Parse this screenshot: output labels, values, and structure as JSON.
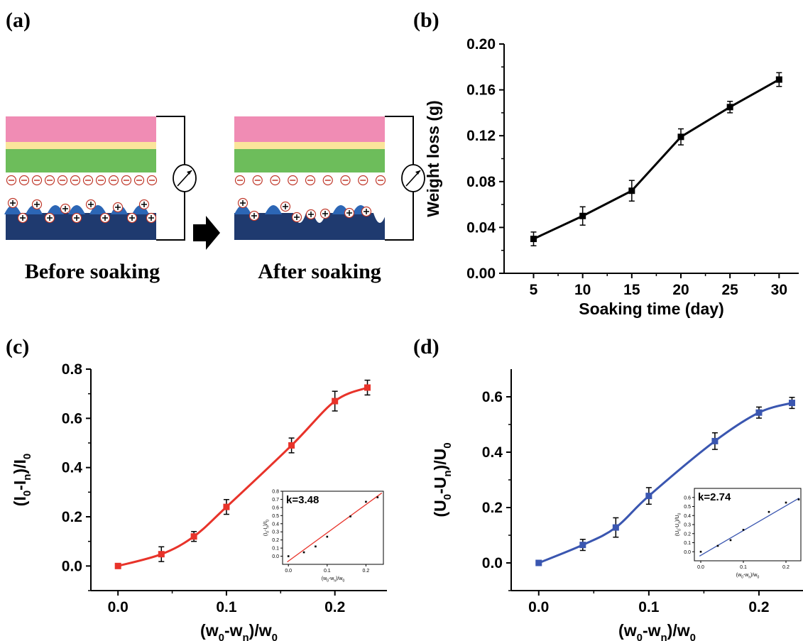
{
  "panels": {
    "a": "(a)",
    "b": "(b)",
    "c": "(c)",
    "d": "(d)"
  },
  "schematic": {
    "before_caption": "Before soaking",
    "after_caption": "After soaking",
    "colors": {
      "pink_layer": "#f08cb4",
      "yellow_layer": "#fbe59b",
      "green_layer": "#6dbd5b",
      "base": "#1f3a6f",
      "bumps": "#2c66b5"
    }
  },
  "chart_data": [
    {
      "id": "b",
      "type": "line",
      "title": "",
      "xlabel": "Soaking time (day)",
      "ylabel": "Weight loss (g)",
      "xlim": [
        2,
        32
      ],
      "ylim": [
        0,
        0.2
      ],
      "xticks": [
        "5",
        "10",
        "15",
        "20",
        "25",
        "30"
      ],
      "yticks": [
        "0.00",
        "0.04",
        "0.08",
        "0.12",
        "0.16",
        "0.20"
      ],
      "color": "#000000",
      "x": [
        5,
        10,
        15,
        20,
        25,
        30
      ],
      "y": [
        0.03,
        0.05,
        0.072,
        0.119,
        0.145,
        0.169
      ],
      "err": [
        0.006,
        0.008,
        0.009,
        0.007,
        0.005,
        0.006
      ]
    },
    {
      "id": "c",
      "type": "line",
      "title": "",
      "xlabel": "(w0-wn)/w0",
      "ylabel": "(I0-In)/I0",
      "xlim": [
        -0.025,
        0.248
      ],
      "ylim": [
        -0.1,
        0.8
      ],
      "xticks": [
        "0.0",
        "0.1",
        "0.2"
      ],
      "yticks": [
        "0.0",
        "0.2",
        "0.4",
        "0.6",
        "0.8"
      ],
      "color": "#e8332a",
      "x": [
        0,
        0.04,
        0.07,
        0.1,
        0.16,
        0.2,
        0.23
      ],
      "y": [
        0,
        0.048,
        0.12,
        0.24,
        0.49,
        0.67,
        0.725
      ],
      "err": [
        0.005,
        0.03,
        0.02,
        0.03,
        0.03,
        0.04,
        0.03
      ],
      "inset": {
        "type": "scatter",
        "annotation": "k=3.48",
        "xlabel": "(w0-wn)/w0",
        "ylabel": "(I0-In)/I0",
        "xlim": [
          -0.015,
          0.245
        ],
        "ylim": [
          -0.1,
          0.8
        ],
        "xticks": [
          "0.0",
          "0.1",
          "0.2"
        ],
        "yticks": [
          "0.0",
          "0.1",
          "0.2",
          "0.3",
          "0.4",
          "0.5",
          "0.6",
          "0.7",
          "0.8"
        ],
        "slope": 3.48,
        "intercept": -0.06,
        "fit_color": "#e8332a",
        "x": [
          0,
          0.04,
          0.07,
          0.1,
          0.16,
          0.2,
          0.23
        ],
        "y": [
          0,
          0.048,
          0.12,
          0.24,
          0.49,
          0.67,
          0.725
        ]
      }
    },
    {
      "id": "d",
      "type": "line",
      "title": "",
      "xlabel": "(w0-wn)/w0",
      "ylabel": "(U0-Un)/U0",
      "xlim": [
        -0.025,
        0.24
      ],
      "ylim": [
        -0.1,
        0.7
      ],
      "xticks": [
        "0.0",
        "0.1",
        "0.2"
      ],
      "yticks": [
        "0.0",
        "0.2",
        "0.4",
        "0.6"
      ],
      "color": "#3a56b0",
      "x": [
        0,
        0.04,
        0.07,
        0.1,
        0.16,
        0.2,
        0.23
      ],
      "y": [
        0,
        0.065,
        0.128,
        0.242,
        0.44,
        0.543,
        0.578
      ],
      "err": [
        0.005,
        0.02,
        0.035,
        0.03,
        0.03,
        0.02,
        0.02
      ],
      "inset": {
        "type": "scatter",
        "annotation": "k=2.74",
        "xlabel": "(w0-wn)/w0",
        "ylabel": "(U0-Un)/U0",
        "xlim": [
          -0.015,
          0.235
        ],
        "ylim": [
          -0.1,
          0.7
        ],
        "xticks": [
          "0.0",
          "0.1",
          "0.2"
        ],
        "yticks": [
          "0.0",
          "0.1",
          "0.2",
          "0.3",
          "0.4",
          "0.5",
          "0.6"
        ],
        "slope": 2.74,
        "intercept": -0.04,
        "fit_color": "#3a56b0",
        "x": [
          0,
          0.04,
          0.07,
          0.1,
          0.16,
          0.2,
          0.23
        ],
        "y": [
          0,
          0.065,
          0.128,
          0.242,
          0.44,
          0.543,
          0.578
        ]
      }
    }
  ]
}
